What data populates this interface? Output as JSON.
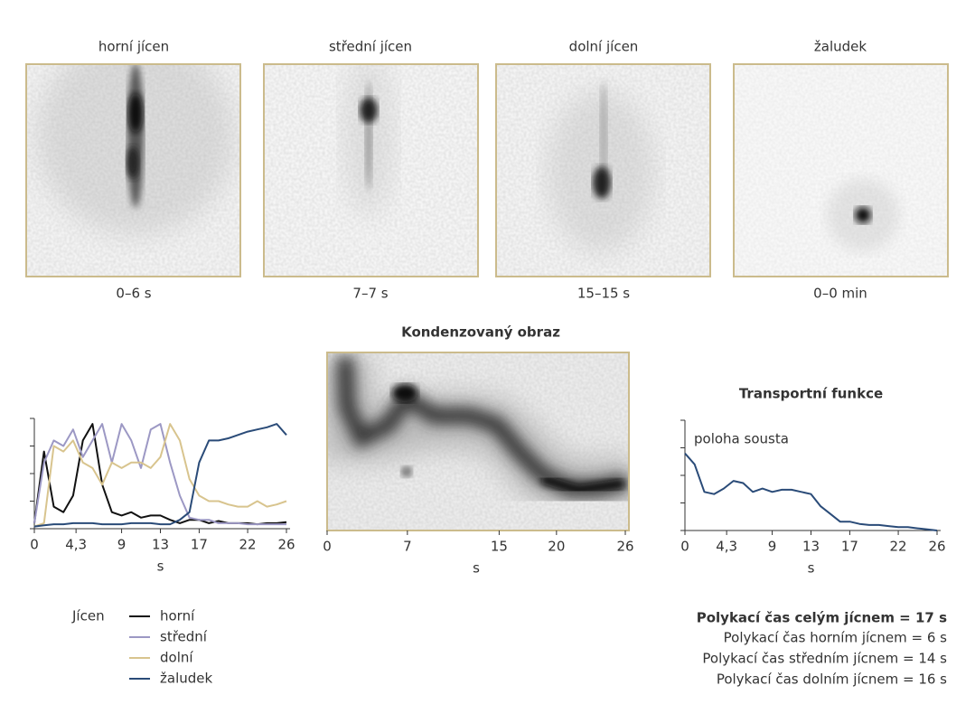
{
  "images": [
    {
      "title": "horní jícen",
      "caption": "0–6 s"
    },
    {
      "title": "střední jícen",
      "caption": "7–7 s"
    },
    {
      "title": "dolní jícen",
      "caption": "15–15 s"
    },
    {
      "title": "žaludek",
      "caption": "0–0 min"
    }
  ],
  "chart_data": [
    {
      "type": "line",
      "legend_title": "Jícen",
      "xlabel": "s",
      "x": [
        0,
        1,
        2,
        3,
        4,
        5,
        6,
        7,
        8,
        9,
        10,
        11,
        12,
        13,
        14,
        15,
        16,
        17,
        18,
        19,
        20,
        21,
        22,
        23,
        24,
        25,
        26
      ],
      "xlim": [
        0,
        26
      ],
      "xticks": [
        0,
        {
          "value": 4.3,
          "label": "4,3"
        },
        9,
        13,
        17,
        22,
        26
      ],
      "ylim": [
        0,
        100
      ],
      "series": [
        {
          "name": "horní",
          "color": "#111111",
          "values": [
            5,
            70,
            20,
            15,
            30,
            80,
            95,
            40,
            15,
            12,
            15,
            10,
            12,
            12,
            8,
            5,
            8,
            8,
            5,
            7,
            5,
            5,
            5,
            4,
            5,
            5,
            6
          ]
        },
        {
          "name": "střední",
          "color": "#9c98c4",
          "values": [
            5,
            60,
            80,
            75,
            90,
            65,
            80,
            95,
            60,
            95,
            80,
            55,
            90,
            95,
            60,
            30,
            10,
            8,
            8,
            5,
            5,
            5,
            4,
            4,
            4,
            4,
            4
          ]
        },
        {
          "name": "dolní",
          "color": "#d8c48e",
          "values": [
            2,
            5,
            75,
            70,
            80,
            60,
            55,
            40,
            60,
            55,
            60,
            60,
            55,
            65,
            95,
            80,
            45,
            30,
            25,
            25,
            22,
            20,
            20,
            25,
            20,
            22,
            25
          ]
        },
        {
          "name": "žaludek",
          "color": "#2a4b78",
          "values": [
            2,
            3,
            4,
            4,
            5,
            5,
            5,
            4,
            4,
            4,
            5,
            5,
            5,
            4,
            4,
            8,
            15,
            60,
            80,
            80,
            82,
            85,
            88,
            90,
            92,
            95,
            85
          ]
        }
      ]
    },
    {
      "type": "image",
      "title": "Kondenzovaný obraz",
      "xlabel": "s",
      "xlim": [
        0,
        26
      ],
      "xticks": [
        0,
        7,
        15,
        20,
        26
      ]
    },
    {
      "type": "line",
      "title": "Transportní funkce",
      "annotation": "poloha sousta",
      "xlabel": "s",
      "x": [
        0,
        1,
        2,
        3,
        4,
        5,
        6,
        7,
        8,
        9,
        10,
        11,
        12,
        13,
        14,
        15,
        16,
        17,
        18,
        19,
        20,
        21,
        22,
        23,
        24,
        25,
        26
      ],
      "xlim": [
        0,
        26
      ],
      "xticks": [
        0,
        {
          "value": 4.3,
          "label": "4,3"
        },
        9,
        13,
        17,
        22,
        26
      ],
      "ylim": [
        0,
        100
      ],
      "series": [
        {
          "color": "#2a4b78",
          "values": [
            70,
            60,
            35,
            33,
            38,
            45,
            43,
            35,
            38,
            35,
            37,
            37,
            35,
            33,
            22,
            15,
            8,
            8,
            6,
            5,
            5,
            4,
            3,
            3,
            2,
            1,
            0
          ]
        }
      ]
    }
  ],
  "summary": {
    "total": "Polykací čas celým jícnem = 17 s",
    "lines": [
      "Polykací čas horním jícnem = 6 s",
      "Polykací čas středním jícnem = 14 s",
      "Polykací čas dolním jícnem = 16 s"
    ]
  }
}
